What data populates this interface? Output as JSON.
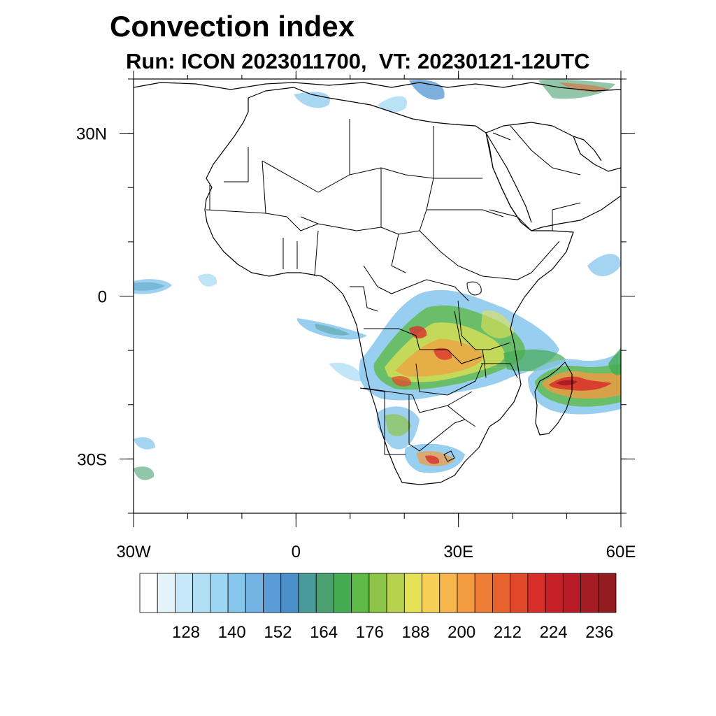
{
  "title": "Convection index",
  "subtitle": "Run: ICON 2023011700,  VT: 20230121-12UTC",
  "map": {
    "region": "Africa",
    "projection": "cylindrical equidistant",
    "lon_range": [
      -30,
      60
    ],
    "lat_range": [
      -40,
      40
    ],
    "lon_ticks": [
      {
        "value": -30,
        "label": "30W"
      },
      {
        "value": 0,
        "label": "0"
      },
      {
        "value": 30,
        "label": "30E"
      },
      {
        "value": 60,
        "label": "60E"
      }
    ],
    "lat_ticks": [
      {
        "value": 30,
        "label": "30N"
      },
      {
        "value": 0,
        "label": "0"
      },
      {
        "value": -30,
        "label": "30S"
      }
    ],
    "minor_lon_step": 10,
    "minor_lat_step": 10
  },
  "colorbar": {
    "labels": [
      "128",
      "140",
      "152",
      "164",
      "176",
      "188",
      "200",
      "212",
      "224",
      "236"
    ],
    "colors": [
      "#ffffff",
      "#e4f3fb",
      "#c9e8f7",
      "#b3dff5",
      "#9dd6f3",
      "#86c6ec",
      "#73b3e3",
      "#5c9cd6",
      "#4a8fc9",
      "#4a9a9a",
      "#4aa06e",
      "#44ab52",
      "#5fba48",
      "#8cc44a",
      "#b7d24e",
      "#e3e254",
      "#f7cf55",
      "#f6b84d",
      "#f39b3f",
      "#ee7e35",
      "#e7622d",
      "#e14829",
      "#d92e2a",
      "#c82028",
      "#b81c27",
      "#a51b24",
      "#921b1f"
    ]
  }
}
